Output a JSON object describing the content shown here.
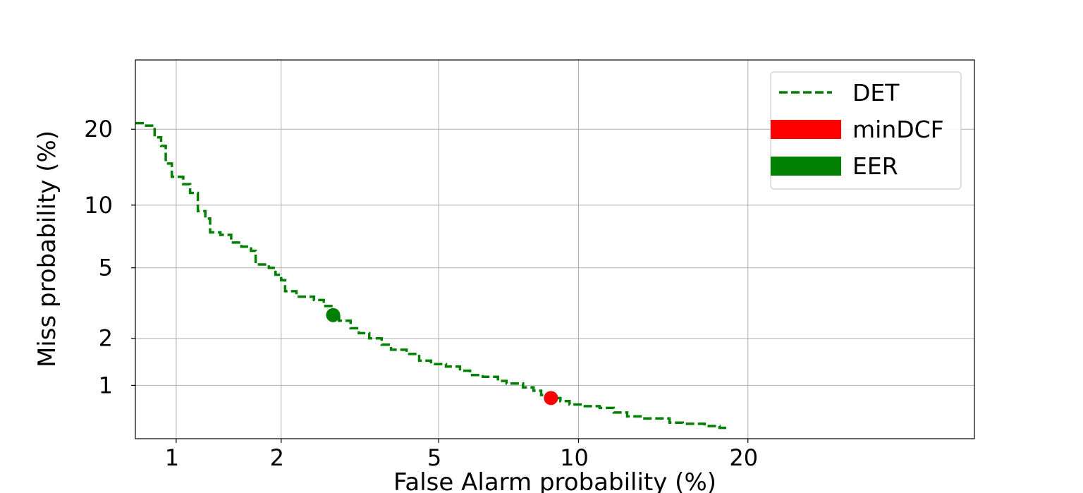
{
  "chart_data": {
    "type": "line",
    "xlabel": "False Alarm probability (%)",
    "ylabel": "Miss probability (%)",
    "xscale": "probit",
    "yscale": "probit",
    "xlim": [
      0.75,
      40
    ],
    "ylim": [
      0.42,
      33
    ],
    "x_ticks": [
      1,
      2,
      5,
      10,
      20
    ],
    "x_tick_labels": [
      "1",
      "2",
      "5",
      "10",
      "20"
    ],
    "y_ticks": [
      1,
      2,
      5,
      10,
      20
    ],
    "y_tick_labels": [
      "1",
      "2",
      "5",
      "10",
      "20"
    ],
    "grid": true,
    "legend_position": "top-right",
    "series": [
      {
        "name": "DET",
        "color": "#008000",
        "style": "dashed-step",
        "points": [
          [
            0.75,
            21.0
          ],
          [
            0.8,
            21.0
          ],
          [
            0.8,
            20.6
          ],
          [
            0.86,
            20.6
          ],
          [
            0.86,
            18.7
          ],
          [
            0.9,
            18.7
          ],
          [
            0.9,
            17.4
          ],
          [
            0.93,
            17.4
          ],
          [
            0.93,
            14.9
          ],
          [
            0.97,
            14.9
          ],
          [
            0.97,
            13.2
          ],
          [
            1.05,
            13.2
          ],
          [
            1.05,
            12.3
          ],
          [
            1.1,
            12.3
          ],
          [
            1.1,
            11.3
          ],
          [
            1.16,
            11.3
          ],
          [
            1.16,
            9.4
          ],
          [
            1.22,
            9.4
          ],
          [
            1.22,
            8.7
          ],
          [
            1.26,
            8.7
          ],
          [
            1.26,
            7.5
          ],
          [
            1.35,
            7.5
          ],
          [
            1.35,
            7.3
          ],
          [
            1.45,
            7.3
          ],
          [
            1.45,
            6.7
          ],
          [
            1.55,
            6.7
          ],
          [
            1.55,
            6.4
          ],
          [
            1.65,
            6.4
          ],
          [
            1.65,
            6.1
          ],
          [
            1.7,
            6.1
          ],
          [
            1.7,
            5.2
          ],
          [
            1.85,
            5.2
          ],
          [
            1.85,
            5.0
          ],
          [
            1.93,
            5.0
          ],
          [
            1.93,
            4.6
          ],
          [
            2.0,
            4.6
          ],
          [
            2.0,
            4.3
          ],
          [
            2.05,
            4.3
          ],
          [
            2.05,
            3.75
          ],
          [
            2.2,
            3.75
          ],
          [
            2.2,
            3.5
          ],
          [
            2.45,
            3.5
          ],
          [
            2.45,
            3.35
          ],
          [
            2.6,
            3.35
          ],
          [
            2.6,
            3.1
          ],
          [
            2.75,
            3.1
          ],
          [
            2.75,
            2.7
          ],
          [
            2.85,
            2.7
          ],
          [
            2.85,
            2.55
          ],
          [
            3.05,
            2.55
          ],
          [
            3.05,
            2.3
          ],
          [
            3.2,
            2.3
          ],
          [
            3.2,
            2.15
          ],
          [
            3.4,
            2.15
          ],
          [
            3.4,
            2.0
          ],
          [
            3.65,
            2.0
          ],
          [
            3.65,
            1.83
          ],
          [
            3.85,
            1.83
          ],
          [
            3.85,
            1.7
          ],
          [
            4.2,
            1.7
          ],
          [
            4.2,
            1.6
          ],
          [
            4.5,
            1.6
          ],
          [
            4.5,
            1.45
          ],
          [
            4.8,
            1.45
          ],
          [
            4.8,
            1.38
          ],
          [
            5.2,
            1.38
          ],
          [
            5.2,
            1.33
          ],
          [
            5.6,
            1.33
          ],
          [
            5.6,
            1.25
          ],
          [
            5.9,
            1.25
          ],
          [
            5.9,
            1.17
          ],
          [
            6.3,
            1.17
          ],
          [
            6.3,
            1.14
          ],
          [
            6.8,
            1.14
          ],
          [
            6.8,
            1.07
          ],
          [
            7.1,
            1.07
          ],
          [
            7.1,
            1.03
          ],
          [
            7.7,
            1.03
          ],
          [
            7.7,
            0.97
          ],
          [
            8.1,
            0.97
          ],
          [
            8.1,
            0.92
          ],
          [
            8.4,
            0.92
          ],
          [
            8.4,
            0.86
          ],
          [
            8.8,
            0.86
          ],
          [
            8.8,
            0.82
          ],
          [
            9.2,
            0.82
          ],
          [
            9.2,
            0.78
          ],
          [
            9.6,
            0.78
          ],
          [
            9.6,
            0.74
          ],
          [
            10.2,
            0.74
          ],
          [
            10.2,
            0.72
          ],
          [
            11.0,
            0.72
          ],
          [
            11.0,
            0.7
          ],
          [
            11.7,
            0.7
          ],
          [
            11.7,
            0.65
          ],
          [
            12.4,
            0.65
          ],
          [
            12.4,
            0.61
          ],
          [
            13.2,
            0.61
          ],
          [
            13.2,
            0.59
          ],
          [
            14.8,
            0.59
          ],
          [
            14.8,
            0.55
          ],
          [
            15.6,
            0.55
          ],
          [
            15.6,
            0.54
          ],
          [
            17.0,
            0.54
          ],
          [
            17.0,
            0.52
          ],
          [
            18.0,
            0.52
          ],
          [
            18.0,
            0.505
          ],
          [
            18.5,
            0.505
          ]
        ]
      }
    ],
    "markers": [
      {
        "name": "minDCF",
        "x": 8.8,
        "y": 0.82,
        "color": "#ff0000"
      },
      {
        "name": "EER",
        "x": 2.75,
        "y": 2.75,
        "color": "#008000"
      }
    ]
  }
}
